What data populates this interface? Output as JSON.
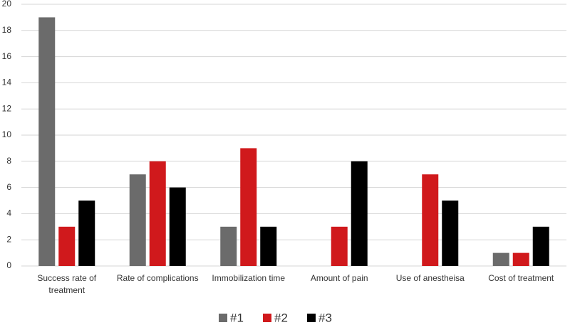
{
  "chart_data": {
    "type": "bar",
    "categories": [
      "Success rate of treatment",
      "Rate of complications",
      "Immobilization time",
      "Amount of pain",
      "Use of anestheisa",
      "Cost of treatment"
    ],
    "series": [
      {
        "name": "#1",
        "color": "#6b6b6b",
        "values": [
          19,
          7,
          3,
          0,
          0,
          1
        ]
      },
      {
        "name": "#2",
        "color": "#d0191c",
        "values": [
          3,
          8,
          9,
          3,
          7,
          1
        ]
      },
      {
        "name": "#3",
        "color": "#000000",
        "values": [
          5,
          6,
          3,
          8,
          5,
          3
        ]
      }
    ],
    "ylim": [
      0,
      20
    ],
    "yticks": [
      0,
      2,
      4,
      6,
      8,
      10,
      12,
      14,
      16,
      18,
      20
    ],
    "grid": true,
    "legend": "bottom"
  }
}
